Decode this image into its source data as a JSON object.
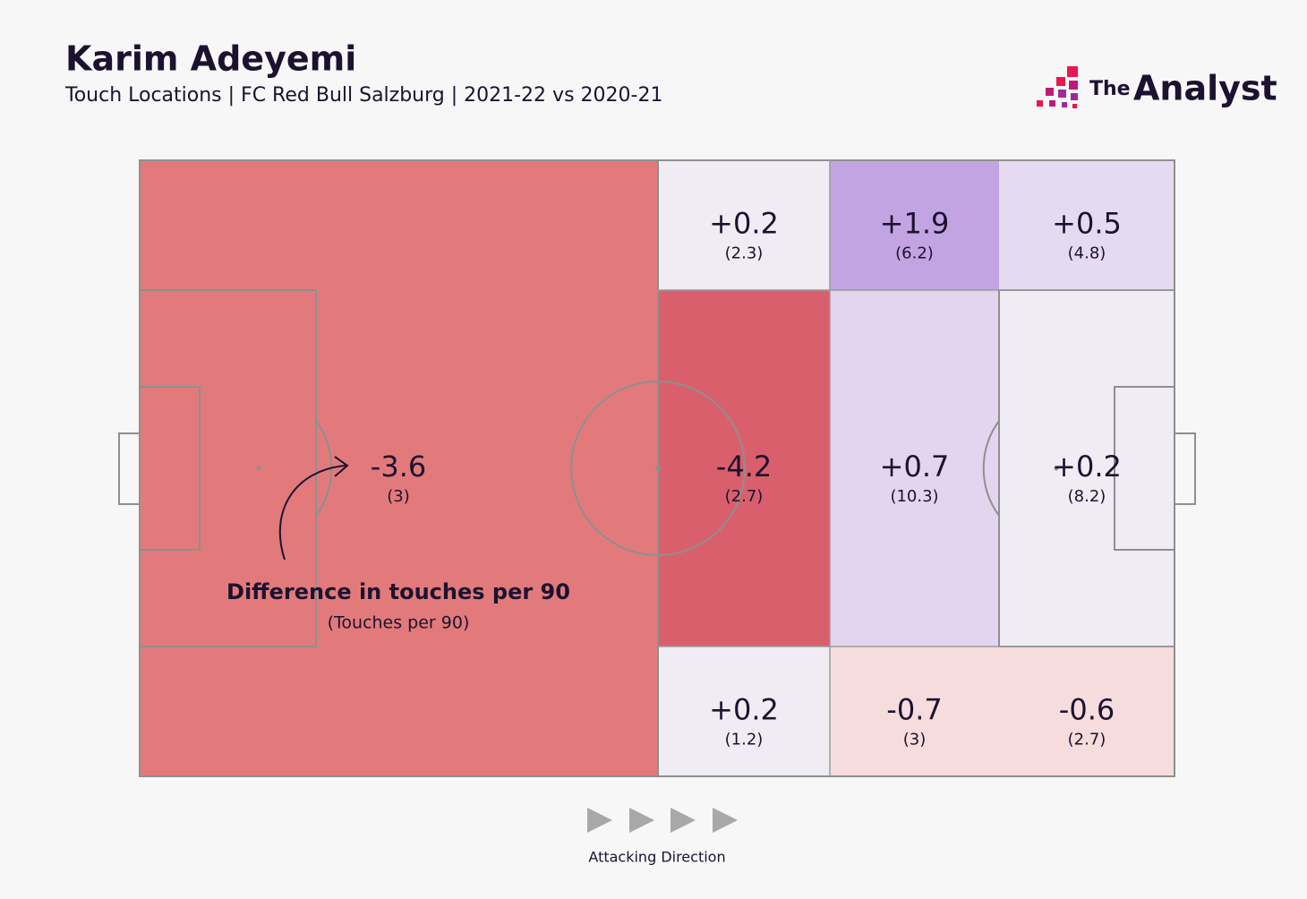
{
  "chart_data": {
    "type": "zones",
    "title": "Karim Adeyemi",
    "subtitle": "Touch Locations | FC Red Bull Salzburg | 2021-22 vs 2020-21",
    "brand_small": "The",
    "brand": "Analyst",
    "annotation": "Difference in touches per 90",
    "annotation_sub": "(Touches per 90)",
    "direction_label": "Attacking Direction",
    "zones": [
      {
        "value": -3.6,
        "value_label": "-3.6",
        "touches": 3,
        "touches_label": "(3)",
        "color": "#e27a7b"
      },
      {
        "value": 0.2,
        "value_label": "+0.2",
        "touches": 2.3,
        "touches_label": "(2.3)",
        "color": "#efecf3"
      },
      {
        "value": 1.9,
        "value_label": "+1.9",
        "touches": 6.2,
        "touches_label": "(6.2)",
        "color": "#c3a4e2"
      },
      {
        "value": 0.5,
        "value_label": "+0.5",
        "touches": 4.8,
        "touches_label": "(4.8)",
        "color": "#e6daf0"
      },
      {
        "value": -4.2,
        "value_label": "-4.2",
        "touches": 2.7,
        "touches_label": "(2.7)",
        "color": "#da5f6c"
      },
      {
        "value": 0.7,
        "value_label": "+0.7",
        "touches": 10.3,
        "touches_label": "(10.3)",
        "color": "#e3d5ef"
      },
      {
        "value": 0.2,
        "value_label": "+0.2",
        "touches": 8.2,
        "touches_label": "(8.2)",
        "color": "#efecf3"
      },
      {
        "value": 0.2,
        "value_label": "+0.2",
        "touches": 1.2,
        "touches_label": "(1.2)",
        "color": "#efecf3"
      },
      {
        "value": -0.7,
        "value_label": "-0.7",
        "touches": 3,
        "touches_label": "(3)",
        "color": "#f6dcdc"
      },
      {
        "value": -0.6,
        "value_label": "-0.6",
        "touches": 2.7,
        "touches_label": "(2.7)",
        "color": "#f6dcdc"
      }
    ]
  }
}
